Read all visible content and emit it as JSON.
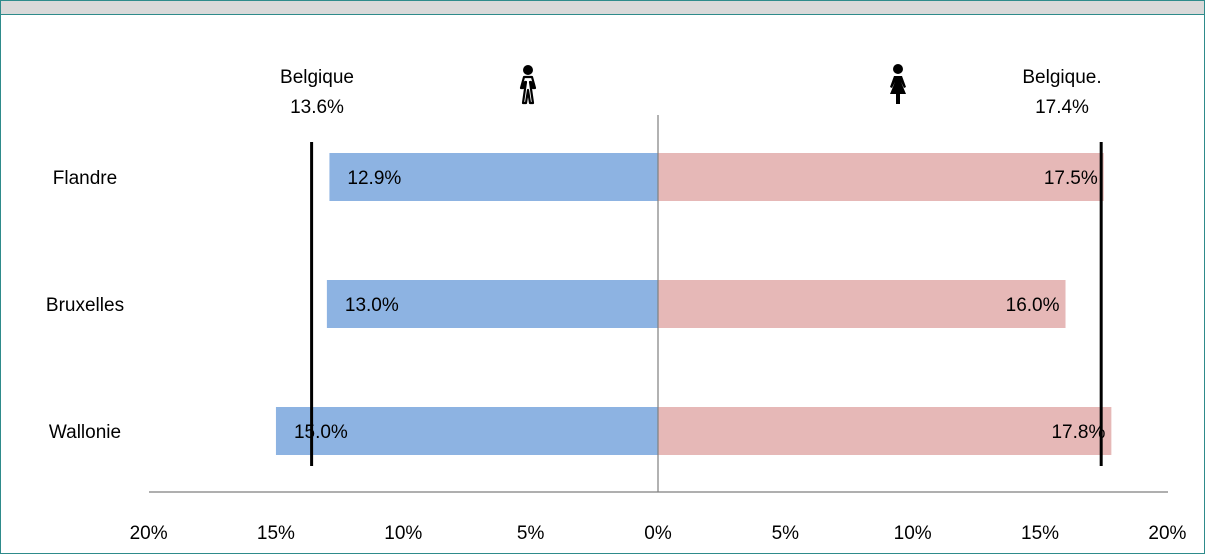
{
  "chart_data": {
    "type": "bar",
    "orientation": "horizontal-diverging",
    "categories": [
      "Flandre",
      "Bruxelles",
      "Wallonie"
    ],
    "series": [
      {
        "values": [
          12.9,
          13.0,
          15.0
        ],
        "labels": [
          "12.9%",
          "13.0%",
          "15.0%"
        ],
        "color": "#8db3e2",
        "side": "left"
      },
      {
        "values": [
          17.5,
          16.0,
          17.8
        ],
        "labels": [
          "17.5%",
          "16.0%",
          "17.8%"
        ],
        "color": "#e6b8b7",
        "side": "right"
      }
    ],
    "reference_lines": [
      {
        "side": "left",
        "value": 13.6,
        "label": "Belgique",
        "value_label": "13.6%"
      },
      {
        "side": "right",
        "value": 17.4,
        "label": "Belgique.",
        "value_label": "17.4%"
      }
    ],
    "xlim": [
      -20,
      20
    ],
    "x_ticks": [
      {
        "value": -20,
        "label": "20%"
      },
      {
        "value": -15,
        "label": "15%"
      },
      {
        "value": -10,
        "label": "10%"
      },
      {
        "value": -5,
        "label": "5%"
      },
      {
        "value": 0,
        "label": "0%"
      },
      {
        "value": 5,
        "label": "5%"
      },
      {
        "value": 10,
        "label": "10%"
      },
      {
        "value": 15,
        "label": "15%"
      },
      {
        "value": 20,
        "label": "20%"
      }
    ],
    "grid": false,
    "icons": {
      "left": "man-icon",
      "right": "woman-icon"
    }
  }
}
